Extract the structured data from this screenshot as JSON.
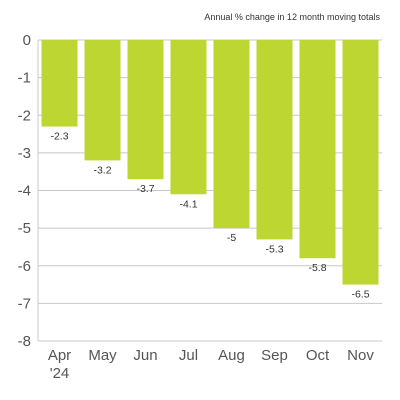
{
  "chart_data": {
    "type": "bar",
    "subtitle": "Annual % change in 12 month moving totals",
    "categories": [
      "Apr",
      "May",
      "Jun",
      "Jul",
      "Aug",
      "Sep",
      "Oct",
      "Nov"
    ],
    "category_sublabels": [
      "'24",
      "",
      "",
      "",
      "",
      "",
      "",
      ""
    ],
    "values": [
      -2.3,
      -3.2,
      -3.7,
      -4.1,
      -5,
      -5.3,
      -5.8,
      -6.5
    ],
    "value_labels": [
      "-2.3",
      "-3.2",
      "-3.7",
      "-4.1",
      "-5",
      "-5.3",
      "-5.8",
      "-6.5"
    ],
    "ylim": [
      -8,
      0
    ],
    "yticks": [
      0,
      -1,
      -2,
      -3,
      -4,
      -5,
      -6,
      -7,
      -8
    ],
    "ytick_labels": [
      "0",
      "-1",
      "-2",
      "-3",
      "-4",
      "-5",
      "-6",
      "-7",
      "-8"
    ],
    "grid": true,
    "bar_color": "#bdd631",
    "grid_color": "#c8c8c8"
  }
}
